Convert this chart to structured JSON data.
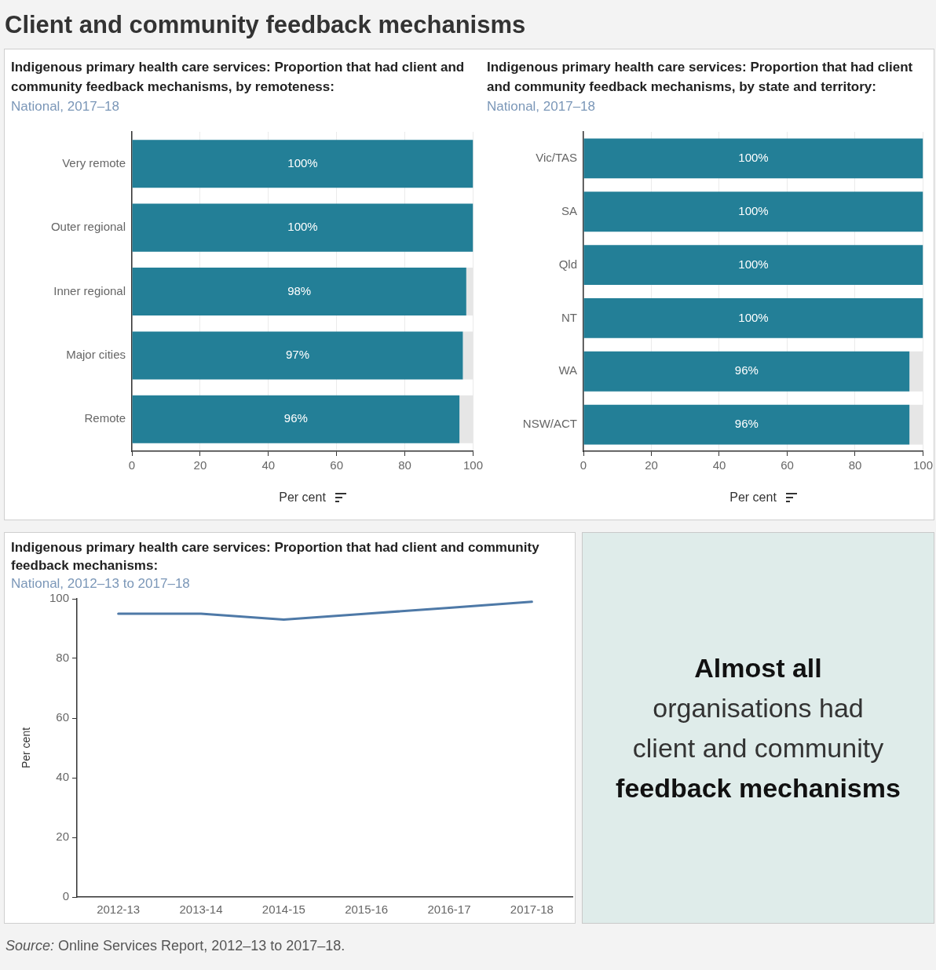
{
  "chart_data": [
    {
      "type": "other",
      "title": "Client and community feedback mechanisms"
    },
    {
      "type": "bar",
      "orientation": "horizontal",
      "stacked": true,
      "title": "Indigenous primary health care services: Proportion that had client and community feedback mechanisms, by remoteness:",
      "subtitle": "National, 2017–18",
      "xlabel": "Per cent",
      "categories": [
        "Very remote",
        "Outer regional",
        "Inner regional",
        "Major cities",
        "Remote"
      ],
      "series": [
        {
          "color": "#237f97",
          "values": [
            100,
            100,
            98,
            97,
            96
          ],
          "value_labels": [
            "100%",
            "100%",
            "98%",
            "97%",
            "96%"
          ]
        },
        {
          "color": "#e6e6e6",
          "values": [
            0,
            0,
            2,
            3,
            4
          ]
        }
      ],
      "xlim": [
        0,
        100
      ],
      "xticks": [
        0,
        20,
        40,
        60,
        80,
        100
      ],
      "grid": "x"
    },
    {
      "type": "bar",
      "orientation": "horizontal",
      "stacked": true,
      "title": "Indigenous primary health care services: Proportion that had client and community feedback mechanisms, by state and territory:",
      "subtitle": "National, 2017–18",
      "xlabel": "Per cent",
      "categories": [
        "Vic/TAS",
        "SA",
        "Qld",
        "NT",
        "WA",
        "NSW/ACT"
      ],
      "series": [
        {
          "color": "#237f97",
          "values": [
            100,
            100,
            100,
            100,
            96,
            96
          ],
          "value_labels": [
            "100%",
            "100%",
            "100%",
            "100%",
            "96%",
            "96%"
          ]
        },
        {
          "color": "#e6e6e6",
          "values": [
            0,
            0,
            0,
            0,
            4,
            4
          ]
        }
      ],
      "xlim": [
        0,
        100
      ],
      "xticks": [
        0,
        20,
        40,
        60,
        80,
        100
      ],
      "grid": "x"
    },
    {
      "type": "line",
      "title": "Indigenous primary health care services: Proportion that had client and community feedback mechanisms:",
      "subtitle": "National, 2012–13 to 2017–18",
      "ylabel": "Per cent",
      "categories": [
        "2012-13",
        "2013-14",
        "2014-15",
        "2015-16",
        "2016-17",
        "2017-18"
      ],
      "values": [
        95,
        95,
        93,
        95,
        97,
        99
      ],
      "color": "#4e79a7",
      "ylim": [
        0,
        100
      ],
      "yticks": [
        0,
        20,
        40,
        60,
        80,
        100
      ],
      "annotations": [
        "Source: Online Services Report, 2012–13 to 2017–18."
      ]
    },
    {
      "type": "other",
      "annotations": [
        "Almost all",
        "organisations had",
        "client and community",
        "feedback mechanisms"
      ]
    }
  ]
}
